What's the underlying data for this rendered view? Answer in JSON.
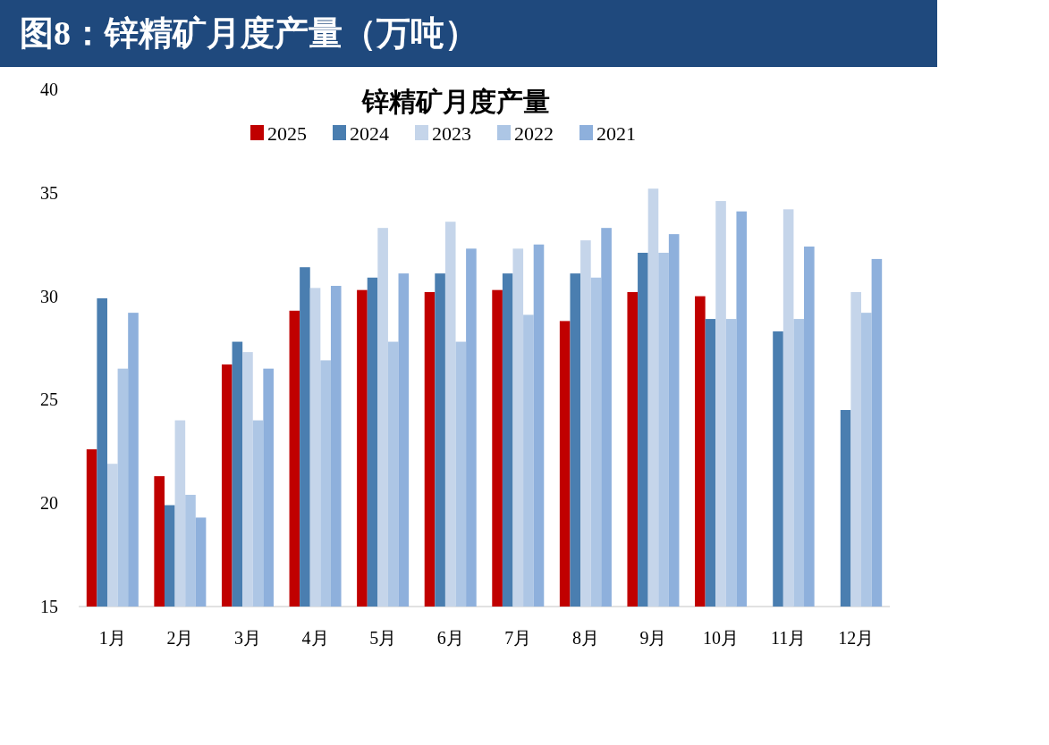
{
  "chart_data": {
    "type": "bar",
    "title": "图8：锌精矿月度产量（万吨）",
    "subtitle": "锌精矿月度产量",
    "categories": [
      "1月",
      "2月",
      "3月",
      "4月",
      "5月",
      "6月",
      "7月",
      "8月",
      "9月",
      "10月",
      "11月",
      "12月"
    ],
    "series": [
      {
        "name": "2025",
        "color": "#c00000",
        "values": [
          22.6,
          21.3,
          26.7,
          29.3,
          30.3,
          30.2,
          30.3,
          28.8,
          30.2,
          30.0,
          null,
          null
        ]
      },
      {
        "name": "2024",
        "color": "#4a7eb0",
        "values": [
          29.9,
          19.9,
          27.8,
          31.4,
          30.9,
          31.1,
          31.1,
          31.1,
          32.1,
          28.9,
          28.3,
          24.5
        ]
      },
      {
        "name": "2023",
        "color": "#c5d5ea",
        "values": [
          21.9,
          24.0,
          27.3,
          30.4,
          33.3,
          33.6,
          32.3,
          32.7,
          35.2,
          34.6,
          34.2,
          30.2
        ]
      },
      {
        "name": "2022",
        "color": "#adc6e5",
        "values": [
          26.5,
          20.4,
          24.0,
          26.9,
          27.8,
          27.8,
          29.1,
          30.9,
          32.1,
          28.9,
          28.9,
          29.2
        ]
      },
      {
        "name": "2021",
        "color": "#8eb0dc",
        "values": [
          29.2,
          19.3,
          26.5,
          30.5,
          31.1,
          32.3,
          32.5,
          33.3,
          33.0,
          34.1,
          32.4,
          31.8
        ]
      }
    ],
    "ylim": [
      15,
      40
    ],
    "yticks": [
      15,
      20,
      25,
      30,
      35,
      40
    ],
    "legend": "top"
  }
}
